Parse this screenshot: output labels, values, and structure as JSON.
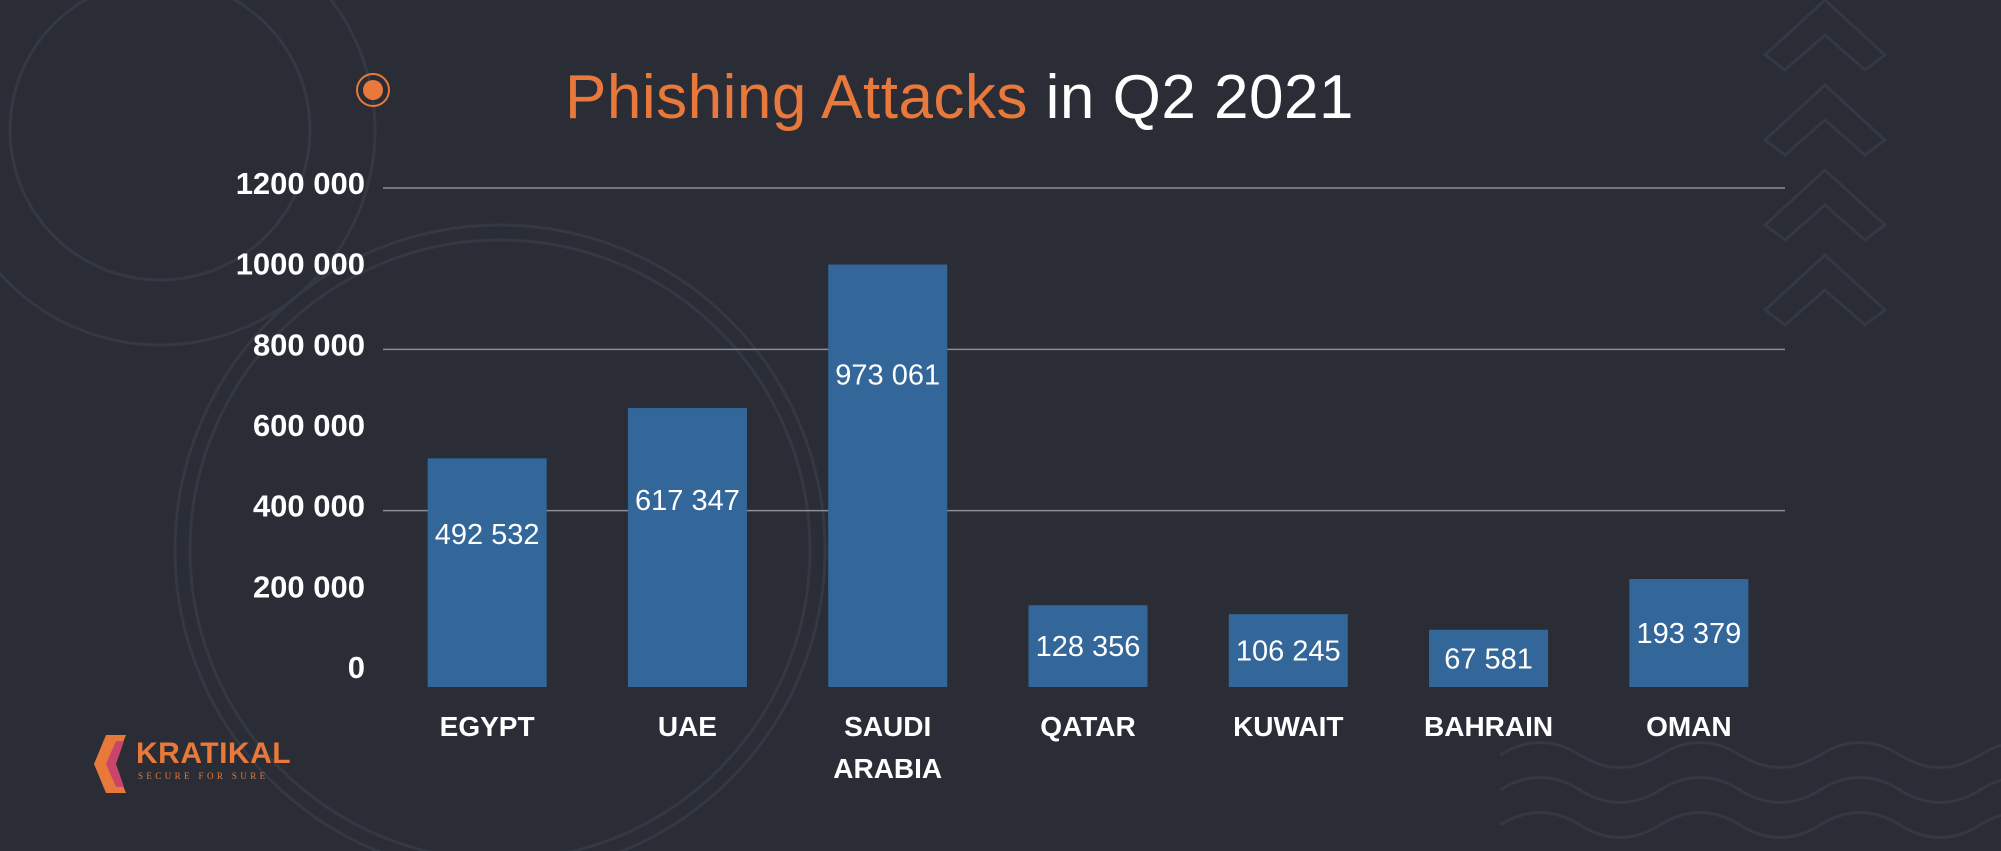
{
  "title": {
    "accent_text": "Phishing Attacks",
    "rest_text": " in Q2 2021"
  },
  "colors": {
    "background": "#2a2d36",
    "bar": "#336699",
    "accent": "#e8793a",
    "grid": "#8a8d95",
    "text": "#ffffff"
  },
  "logo": {
    "name": "KRATIKAL",
    "tagline": "SECURE FOR SURE"
  },
  "chart_data": {
    "type": "bar",
    "title": "Phishing Attacks in Q2 2021",
    "categories": [
      "EGYPT",
      "UAE",
      "SAUDI ARABIA",
      "QATAR",
      "KUWAIT",
      "BAHRAIN",
      "OMAN"
    ],
    "values": [
      492532,
      617347,
      973061,
      128356,
      106245,
      67581,
      193379
    ],
    "value_labels": [
      "492 532",
      "617 347",
      "973 061",
      "128 356",
      "106 245",
      "67 581",
      "193 379"
    ],
    "y_ticks": [
      0,
      200000,
      400000,
      600000,
      800000,
      1000000,
      1200000
    ],
    "y_tick_labels": [
      "0",
      "200 000",
      "400 000",
      "600 000",
      "800 000",
      "1000 000",
      "1200 000"
    ],
    "ylim": [
      0,
      1200000
    ],
    "gridlines_at": [
      400000,
      800000,
      1200000
    ],
    "grid": true,
    "xlabel": "",
    "ylabel": ""
  }
}
